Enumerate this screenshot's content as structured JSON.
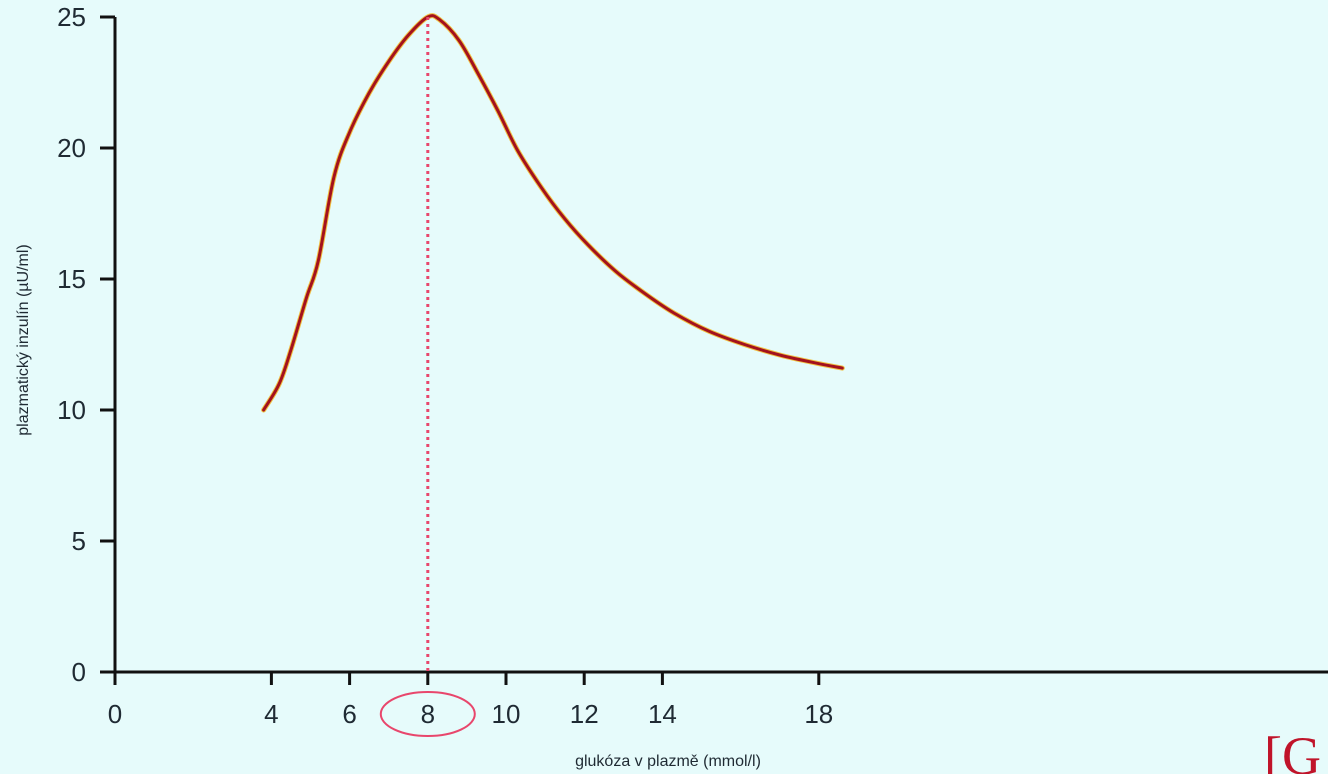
{
  "chart_data": {
    "type": "line",
    "xlabel": "glukóza v plazmě (mmol/l)",
    "ylabel": "plazmatický inzulín (µU/ml)",
    "xlim": [
      0,
      20
    ],
    "ylim": [
      0,
      25
    ],
    "x_ticks": [
      "0",
      "4",
      "6",
      "8",
      "10",
      "12",
      "14",
      "18"
    ],
    "x_tick_values": [
      0,
      4,
      6,
      8,
      10,
      12,
      14,
      18
    ],
    "y_ticks": [
      "0",
      "5",
      "10",
      "15",
      "20",
      "25"
    ],
    "y_tick_values": [
      0,
      5,
      10,
      15,
      20,
      25
    ],
    "grid": false,
    "series": [
      {
        "color": "#a3121e",
        "x": [
          3.8,
          4.2,
          4.5,
          4.9,
          5.2,
          5.6,
          6.0,
          6.5,
          7.0,
          7.5,
          8.0,
          8.3,
          8.8,
          9.3,
          9.8,
          10.3,
          10.9,
          11.5,
          12.1,
          12.8,
          13.5,
          14.3,
          15.2,
          16.1,
          17.0,
          17.9,
          18.6
        ],
        "y": [
          10.0,
          11.0,
          12.3,
          14.3,
          15.7,
          18.9,
          20.6,
          22.1,
          23.3,
          24.3,
          25.0,
          24.9,
          24.1,
          22.8,
          21.4,
          19.9,
          18.5,
          17.3,
          16.3,
          15.3,
          14.5,
          13.7,
          13.0,
          12.5,
          12.1,
          11.8,
          11.6
        ]
      }
    ],
    "annotations": {
      "peak_x": 8,
      "peak_y": 25,
      "highlight_color": "#e8466c",
      "highlighted_tick": "8"
    }
  },
  "corner_mark": "[G"
}
